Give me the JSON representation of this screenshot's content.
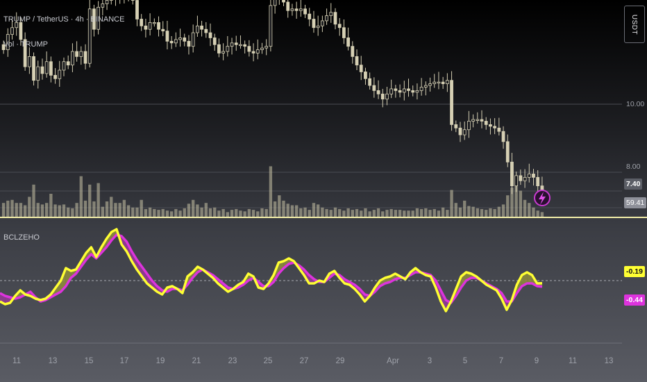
{
  "header": {
    "symbol_line": "TRUMP / TetherUS · 4h · BINANCE",
    "volume_label": "Vol · TRUMP",
    "indicator_label": "BCLZEHO"
  },
  "price_axis": {
    "currency": "USDT",
    "ticks": [
      "10.00",
      "8.00"
    ]
  },
  "badges": {
    "last_price": "7.40",
    "volume": "59.41",
    "fast_line": "-0.19",
    "slow_line": "-0.44"
  },
  "time_axis": {
    "labels": [
      "11",
      "13",
      "15",
      "17",
      "19",
      "21",
      "23",
      "25",
      "27",
      "29",
      "Apr",
      "3",
      "5",
      "7",
      "9",
      "11",
      "13"
    ]
  },
  "colors": {
    "candle": "#d6d0b4",
    "volume": "#c9c3a6",
    "fast_line": "#ffff33",
    "slow_line": "#dd33dd",
    "fill_up": "#8c8a3c",
    "fill_down": "#933a93",
    "baseline": "#f2eea8"
  },
  "chart_data": [
    {
      "type": "candlestick",
      "title": "TRUMP / TetherUS · 4h · BINANCE",
      "y_ticks": [
        "10.00",
        "8.00"
      ],
      "ylim": [
        7.1,
        13.9
      ],
      "x_ticks": [
        "11",
        "13",
        "15",
        "17",
        "19",
        "21",
        "23",
        "25",
        "27",
        "29",
        "Apr",
        "3",
        "5",
        "7",
        "9",
        "11",
        "13"
      ],
      "last_price": 7.4,
      "close": [
        11.6,
        12.05,
        12.25,
        12.4,
        11.9,
        11.1,
        11.4,
        10.7,
        11.1,
        10.9,
        11.25,
        10.85,
        10.75,
        11.0,
        11.25,
        11.15,
        11.55,
        11.4,
        11.55,
        11.2,
        12.8,
        12.2,
        12.85,
        12.95,
        13.05,
        13.2,
        13.1,
        13.3,
        13.2,
        13.5,
        13.05,
        12.5,
        12.3,
        12.2,
        12.4,
        12.4,
        12.2,
        12.15,
        11.85,
        11.8,
        11.9,
        11.95,
        11.85,
        11.7,
        12.1,
        12.3,
        12.2,
        12.1,
        11.95,
        11.75,
        11.5,
        11.55,
        11.7,
        11.8,
        11.75,
        11.75,
        11.7,
        11.55,
        11.5,
        11.6,
        11.65,
        11.7,
        12.9,
        13.1,
        13.2,
        13.0,
        12.75,
        12.8,
        12.75,
        12.8,
        12.65,
        12.5,
        12.25,
        12.3,
        12.45,
        12.6,
        12.7,
        12.35,
        12.25,
        11.95,
        11.7,
        11.4,
        11.15,
        10.95,
        10.75,
        10.55,
        10.4,
        10.3,
        10.15,
        10.3,
        10.45,
        10.4,
        10.35,
        10.45,
        10.4,
        10.35,
        10.4,
        10.5,
        10.55,
        10.6,
        10.65,
        10.65,
        10.6,
        10.7,
        9.4,
        9.3,
        9.1,
        9.25,
        9.5,
        9.55,
        9.55,
        9.5,
        9.4,
        9.35,
        9.3,
        9.2,
        8.9,
        8.3,
        7.6,
        7.9,
        7.75,
        7.85,
        7.95,
        7.85,
        7.6,
        7.4
      ]
    },
    {
      "type": "bar",
      "title": "Vol · TRUMP",
      "last_value": "59.41",
      "values": [
        0.9,
        1.05,
        1.1,
        0.9,
        0.9,
        0.75,
        1.3,
        2.1,
        0.9,
        0.8,
        0.9,
        1.5,
        0.8,
        0.75,
        0.8,
        0.6,
        0.55,
        0.9,
        2.65,
        1.05,
        2.1,
        1.0,
        2.2,
        0.65,
        1.0,
        1.3,
        0.9,
        0.9,
        1.1,
        0.75,
        0.6,
        0.6,
        1.1,
        0.5,
        0.6,
        0.5,
        0.45,
        0.5,
        0.4,
        0.35,
        0.5,
        0.4,
        0.55,
        0.85,
        1.1,
        0.8,
        0.6,
        0.9,
        0.55,
        0.6,
        0.4,
        0.5,
        0.3,
        0.45,
        0.5,
        0.4,
        0.35,
        0.5,
        0.45,
        0.35,
        0.55,
        0.5,
        3.3,
        1.0,
        1.4,
        1.05,
        0.85,
        0.75,
        0.75,
        0.55,
        0.6,
        0.45,
        0.9,
        0.8,
        0.6,
        0.5,
        0.45,
        0.6,
        0.5,
        0.4,
        0.55,
        0.45,
        0.5,
        0.4,
        0.55,
        0.35,
        0.45,
        0.55,
        0.35,
        0.45,
        0.5,
        0.45,
        0.45,
        0.4,
        0.4,
        0.4,
        0.55,
        0.5,
        0.55,
        0.45,
        0.5,
        0.4,
        0.6,
        0.45,
        1.75,
        0.9,
        0.6,
        1.05,
        0.7,
        0.65,
        0.55,
        0.5,
        0.45,
        0.55,
        0.5,
        0.65,
        0.8,
        1.4,
        1.9,
        2.3,
        1.7,
        1.1,
        0.9,
        0.6,
        0.4,
        0.3
      ]
    },
    {
      "type": "line",
      "title": "BCLZEHO",
      "baseline": 0,
      "last_values": {
        "fast": "-0.19",
        "slow": "-0.44"
      },
      "series": [
        {
          "name": "fast",
          "color": "#ffff33",
          "values": [
            -1.5,
            -1.7,
            -1.6,
            -1.1,
            -0.7,
            -1.0,
            -1.1,
            -1.3,
            -1.4,
            -1.3,
            -1.0,
            -0.5,
            0.0,
            0.9,
            0.7,
            0.8,
            1.4,
            2.0,
            2.4,
            1.7,
            2.4,
            3.0,
            3.5,
            3.7,
            2.6,
            2.1,
            1.4,
            0.8,
            0.3,
            -0.2,
            -0.5,
            -0.8,
            -1.0,
            -0.5,
            -0.4,
            -0.6,
            -0.9,
            0.3,
            0.6,
            1.0,
            0.8,
            0.5,
            0.2,
            -0.2,
            -0.5,
            -0.8,
            -0.6,
            -0.3,
            -0.1,
            0.5,
            0.3,
            -0.5,
            -0.6,
            -0.2,
            0.4,
            1.3,
            1.4,
            1.6,
            1.4,
            0.9,
            0.4,
            -0.2,
            -0.2,
            0.0,
            -0.1,
            0.5,
            0.7,
            0.2,
            -0.2,
            -0.3,
            -0.6,
            -1.0,
            -1.5,
            -1.1,
            -0.5,
            0.0,
            0.2,
            0.3,
            0.5,
            0.3,
            0.1,
            0.6,
            0.9,
            0.6,
            0.4,
            0.3,
            -0.5,
            -1.5,
            -2.2,
            -1.5,
            -0.6,
            0.3,
            0.6,
            0.5,
            0.3,
            0.0,
            -0.3,
            -0.5,
            -0.7,
            -1.3,
            -2.1,
            -1.4,
            -0.3,
            0.4,
            0.6,
            0.4,
            -0.2,
            -0.19
          ]
        },
        {
          "name": "slow",
          "color": "#dd33dd",
          "values": [
            -0.9,
            -1.1,
            -1.2,
            -1.3,
            -1.2,
            -1.0,
            -0.8,
            -1.2,
            -1.5,
            -1.4,
            -1.2,
            -1.0,
            -0.8,
            -0.4,
            0.2,
            0.5,
            1.0,
            1.5,
            1.9,
            1.6,
            2.0,
            2.4,
            2.9,
            3.3,
            3.2,
            2.8,
            2.1,
            1.5,
            1.0,
            0.5,
            0.0,
            -0.4,
            -0.7,
            -0.8,
            -0.6,
            -0.6,
            -0.7,
            -0.3,
            0.2,
            0.6,
            0.8,
            0.6,
            0.4,
            0.1,
            -0.2,
            -0.5,
            -0.6,
            -0.5,
            -0.3,
            0.0,
            0.2,
            -0.1,
            -0.4,
            -0.4,
            -0.1,
            0.5,
            0.9,
            1.2,
            1.3,
            1.1,
            0.8,
            0.4,
            0.1,
            -0.1,
            -0.1,
            0.2,
            0.5,
            0.4,
            0.1,
            -0.1,
            -0.3,
            -0.6,
            -1.0,
            -1.1,
            -0.8,
            -0.4,
            -0.2,
            -0.1,
            0.1,
            0.2,
            0.2,
            0.4,
            0.6,
            0.6,
            0.5,
            0.4,
            0.0,
            -0.7,
            -1.4,
            -1.6,
            -1.1,
            -0.5,
            0.0,
            0.2,
            0.2,
            0.0,
            -0.2,
            -0.4,
            -0.6,
            -0.9,
            -1.5,
            -1.5,
            -0.9,
            -0.4,
            -0.2,
            -0.2,
            -0.4,
            -0.44
          ]
        }
      ]
    }
  ]
}
